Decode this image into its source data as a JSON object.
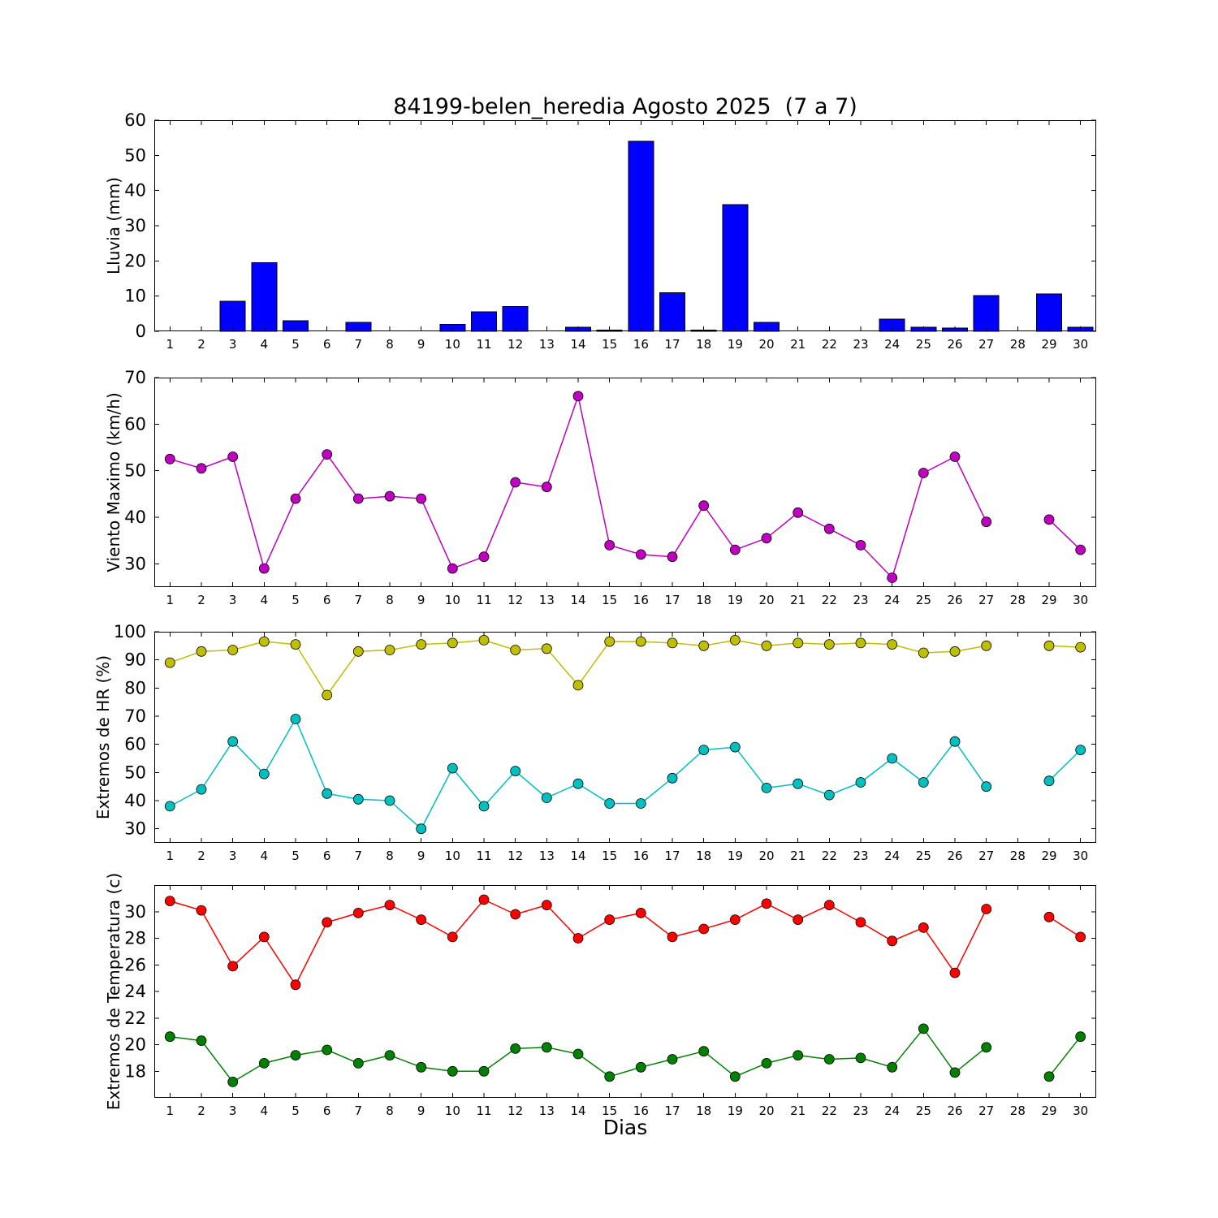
{
  "figure": {
    "title": "84199-belen_heredia Agosto 2025  (7 a 7)",
    "xlabel": "Dias",
    "background": "#ffffff",
    "axes_color": "#000000"
  },
  "chart_data": [
    {
      "type": "bar",
      "ylabel": "Lluvia (mm)",
      "color": "#0000ff",
      "bar_edge_color": "#000000",
      "xlim": [
        0.5,
        30.5
      ],
      "ylim": [
        0,
        60
      ],
      "yticks": [
        0,
        10,
        20,
        30,
        40,
        50,
        60
      ],
      "x": [
        1,
        2,
        3,
        4,
        5,
        6,
        7,
        8,
        9,
        10,
        11,
        12,
        13,
        14,
        15,
        16,
        17,
        18,
        19,
        20,
        21,
        22,
        23,
        24,
        25,
        26,
        27,
        28,
        29,
        30
      ],
      "values": [
        0,
        0,
        8.5,
        19.5,
        3,
        0,
        2.5,
        0,
        0,
        2,
        5.5,
        7,
        0,
        1.2,
        0.3,
        54,
        11,
        0.3,
        36,
        2.5,
        0,
        0,
        0,
        3.5,
        1.2,
        0.9,
        10.2,
        0,
        10.6,
        1.2
      ]
    },
    {
      "type": "line",
      "ylabel": "Viento Maximo (km/h)",
      "xlim": [
        0.5,
        30.5
      ],
      "ylim": [
        25,
        70
      ],
      "yticks": [
        30,
        40,
        50,
        60,
        70
      ],
      "x": [
        1,
        2,
        3,
        4,
        5,
        6,
        7,
        8,
        9,
        10,
        11,
        12,
        13,
        14,
        15,
        16,
        17,
        18,
        19,
        20,
        21,
        22,
        23,
        24,
        25,
        26,
        27,
        28,
        29,
        30
      ],
      "series": [
        {
          "name": "viento-maximo",
          "color": "#bf00bf",
          "values": [
            52.5,
            50.5,
            53,
            29,
            44,
            53.5,
            44,
            44.5,
            44,
            29,
            31.5,
            47.5,
            46.5,
            66,
            34,
            32,
            31.5,
            42.5,
            33,
            35.5,
            41,
            37.5,
            34,
            27,
            49.5,
            53,
            39,
            null,
            39.5,
            33
          ]
        }
      ]
    },
    {
      "type": "line",
      "ylabel": "Extremos de HR (%)",
      "xlim": [
        0.5,
        30.5
      ],
      "ylim": [
        25,
        100
      ],
      "yticks": [
        30,
        40,
        50,
        60,
        70,
        80,
        90,
        100
      ],
      "x": [
        1,
        2,
        3,
        4,
        5,
        6,
        7,
        8,
        9,
        10,
        11,
        12,
        13,
        14,
        15,
        16,
        17,
        18,
        19,
        20,
        21,
        22,
        23,
        24,
        25,
        26,
        27,
        28,
        29,
        30
      ],
      "series": [
        {
          "name": "hr-maxima",
          "color": "#bfbf00",
          "values": [
            89,
            93,
            93.5,
            96.5,
            95.5,
            77.5,
            93,
            93.5,
            95.5,
            96,
            97,
            93.5,
            94,
            81,
            96.5,
            96.5,
            96,
            95,
            97,
            95,
            96,
            95.5,
            96,
            95.5,
            92.5,
            93,
            95,
            null,
            95,
            94.5
          ]
        },
        {
          "name": "hr-minima",
          "color": "#00bfbf",
          "values": [
            38,
            44,
            61,
            49.5,
            69,
            42.5,
            40.5,
            40,
            30,
            51.5,
            38,
            50.5,
            41,
            46,
            39,
            39,
            48,
            58,
            59,
            44.5,
            46,
            42,
            46.5,
            55,
            46.5,
            61,
            45,
            null,
            47,
            58
          ]
        }
      ]
    },
    {
      "type": "line",
      "ylabel": "Extremos de Temperatura (c)",
      "xlim": [
        0.5,
        30.5
      ],
      "ylim": [
        16,
        32
      ],
      "yticks": [
        18,
        20,
        22,
        24,
        26,
        28,
        30
      ],
      "x": [
        1,
        2,
        3,
        4,
        5,
        6,
        7,
        8,
        9,
        10,
        11,
        12,
        13,
        14,
        15,
        16,
        17,
        18,
        19,
        20,
        21,
        22,
        23,
        24,
        25,
        26,
        27,
        28,
        29,
        30
      ],
      "series": [
        {
          "name": "temperatura-maxima",
          "color": "#ff0000",
          "values": [
            30.8,
            30.1,
            25.9,
            28.1,
            24.5,
            29.2,
            29.9,
            30.5,
            29.4,
            28.1,
            30.9,
            29.8,
            30.5,
            28.0,
            29.4,
            29.9,
            28.1,
            28.7,
            29.4,
            30.6,
            29.4,
            30.5,
            29.2,
            27.8,
            28.8,
            25.4,
            30.2,
            null,
            29.6,
            28.1
          ]
        },
        {
          "name": "temperatura-minima",
          "color": "#008000",
          "values": [
            20.6,
            20.3,
            17.2,
            18.6,
            19.2,
            19.6,
            18.6,
            19.2,
            18.3,
            18.0,
            18.0,
            19.7,
            19.8,
            19.3,
            17.6,
            18.3,
            18.9,
            19.5,
            17.6,
            18.6,
            19.2,
            18.9,
            19.0,
            18.3,
            21.2,
            17.9,
            19.8,
            null,
            17.6,
            20.6
          ]
        }
      ]
    }
  ]
}
